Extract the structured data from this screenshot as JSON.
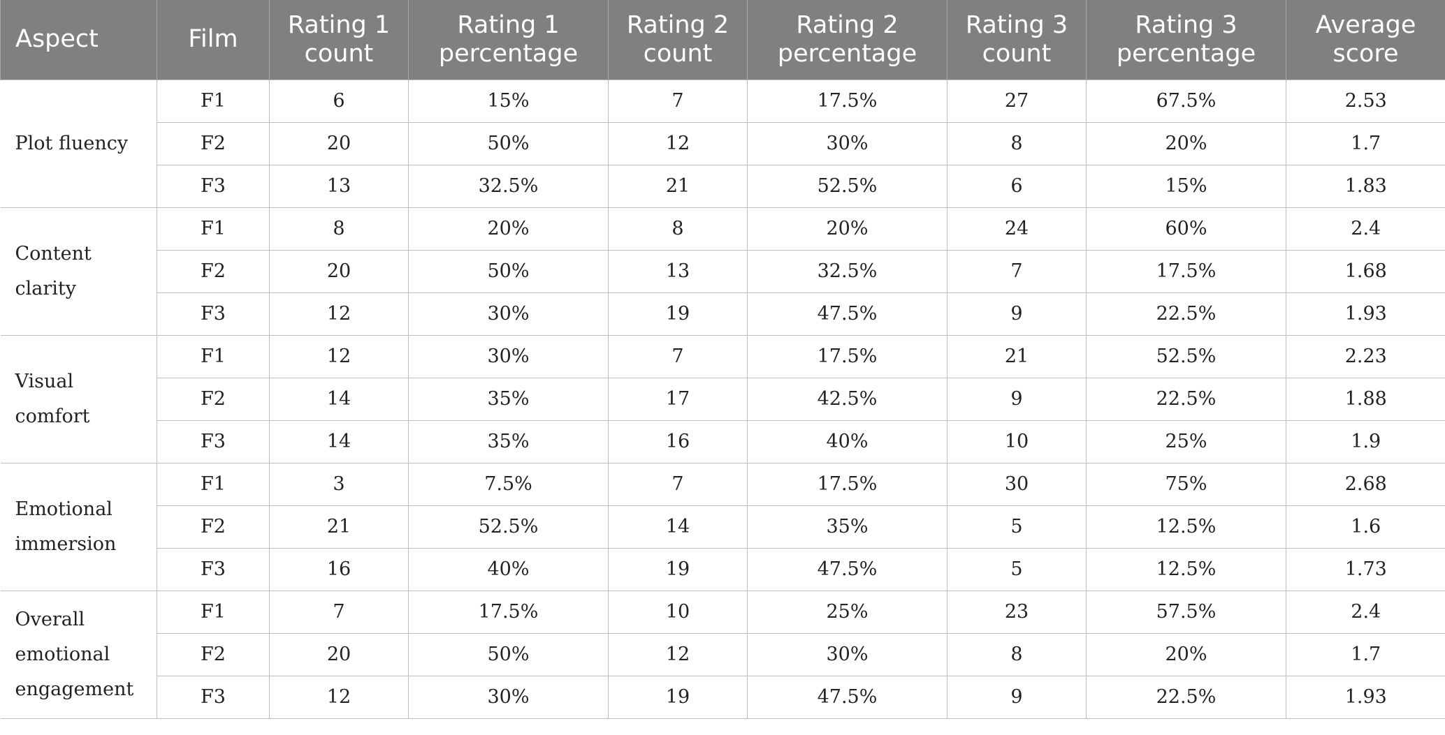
{
  "table": {
    "headers": [
      "Aspect",
      "Film",
      "Rating 1 count",
      "Rating 1 percentage",
      "Rating 2 count",
      "Rating 2 percentage",
      "Rating 3 count",
      "Rating 3 percentage",
      "Average score"
    ],
    "groups": [
      {
        "aspect": "Plot fluency",
        "rows": [
          [
            "F1",
            "6",
            "15%",
            "7",
            "17.5%",
            "27",
            "67.5%",
            "2.53"
          ],
          [
            "F2",
            "20",
            "50%",
            "12",
            "30%",
            "8",
            "20%",
            "1.7"
          ],
          [
            "F3",
            "13",
            "32.5%",
            "21",
            "52.5%",
            "6",
            "15%",
            "1.83"
          ]
        ]
      },
      {
        "aspect": "Content clarity",
        "rows": [
          [
            "F1",
            "8",
            "20%",
            "8",
            "20%",
            "24",
            "60%",
            "2.4"
          ],
          [
            "F2",
            "20",
            "50%",
            "13",
            "32.5%",
            "7",
            "17.5%",
            "1.68"
          ],
          [
            "F3",
            "12",
            "30%",
            "19",
            "47.5%",
            "9",
            "22.5%",
            "1.93"
          ]
        ]
      },
      {
        "aspect": "Visual comfort",
        "rows": [
          [
            "F1",
            "12",
            "30%",
            "7",
            "17.5%",
            "21",
            "52.5%",
            "2.23"
          ],
          [
            "F2",
            "14",
            "35%",
            "17",
            "42.5%",
            "9",
            "22.5%",
            "1.88"
          ],
          [
            "F3",
            "14",
            "35%",
            "16",
            "40%",
            "10",
            "25%",
            "1.9"
          ]
        ]
      },
      {
        "aspect": "Emotional immersion",
        "rows": [
          [
            "F1",
            "3",
            "7.5%",
            "7",
            "17.5%",
            "30",
            "75%",
            "2.68"
          ],
          [
            "F2",
            "21",
            "52.5%",
            "14",
            "35%",
            "5",
            "12.5%",
            "1.6"
          ],
          [
            "F3",
            "16",
            "40%",
            "19",
            "47.5%",
            "5",
            "12.5%",
            "1.73"
          ]
        ]
      },
      {
        "aspect": "Overall emotional engagement",
        "rows": [
          [
            "F1",
            "7",
            "17.5%",
            "10",
            "25%",
            "23",
            "57.5%",
            "2.4"
          ],
          [
            "F2",
            "20",
            "50%",
            "12",
            "30%",
            "8",
            "20%",
            "1.7"
          ],
          [
            "F3",
            "12",
            "30%",
            "19",
            "47.5%",
            "9",
            "22.5%",
            "1.93"
          ]
        ]
      }
    ]
  }
}
